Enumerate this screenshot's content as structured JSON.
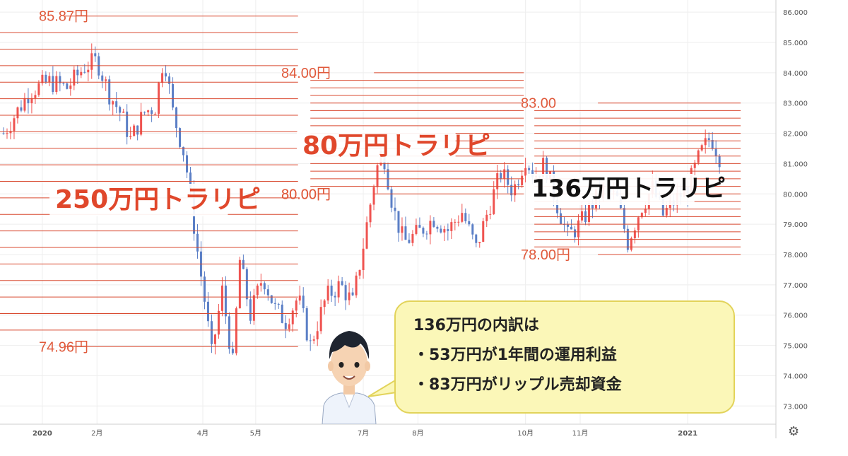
{
  "chart_data": {
    "type": "candlestick",
    "y_axis": {
      "ylim": [
        72.4,
        86.4
      ],
      "tick_labels": [
        "86.000",
        "85.000",
        "84.000",
        "83.000",
        "82.000",
        "81.000",
        "80.000",
        "79.000",
        "78.000",
        "77.000",
        "76.000",
        "75.000",
        "74.000",
        "73.000"
      ],
      "tick_values": [
        86,
        85,
        84,
        83,
        82,
        81,
        80,
        79,
        78,
        77,
        76,
        75,
        74,
        73
      ],
      "grid": true
    },
    "x_axis": {
      "tick_labels": [
        "2020",
        "2月",
        "4月",
        "5月",
        "7月",
        "8月",
        "10月",
        "11月",
        "2021"
      ],
      "tick_dates": [
        "2020-01-01",
        "2020-02-01",
        "2020-04-01",
        "2020-05-01",
        "2020-07-01",
        "2020-08-01",
        "2020-10-01",
        "2020-11-01",
        "2021-01-01"
      ],
      "range": [
        "2019-12-08",
        "2021-02-20"
      ]
    },
    "colors": {
      "up": "#ef5350",
      "down": "#5b7fc6",
      "trap_line": "#d94a30",
      "grid": "#eeeeee"
    },
    "price_path": [
      [
        "2019-12-10",
        82.0
      ],
      [
        "2019-12-25",
        83.4
      ],
      [
        "2020-01-05",
        83.7
      ],
      [
        "2020-01-15",
        83.5
      ],
      [
        "2020-01-25",
        84.2
      ],
      [
        "2020-02-01",
        84.4
      ],
      [
        "2020-02-08",
        83.3
      ],
      [
        "2020-02-15",
        82.6
      ],
      [
        "2020-02-20",
        81.8
      ],
      [
        "2020-02-28",
        82.7
      ],
      [
        "2020-03-05",
        82.9
      ],
      [
        "2020-03-10",
        84.6
      ],
      [
        "2020-03-15",
        82.7
      ],
      [
        "2020-03-22",
        81.2
      ],
      [
        "2020-03-28",
        78.5
      ],
      [
        "2020-04-02",
        76.5
      ],
      [
        "2020-04-06",
        74.7
      ],
      [
        "2020-04-12",
        76.8
      ],
      [
        "2020-04-18",
        74.4
      ],
      [
        "2020-04-22",
        77.8
      ],
      [
        "2020-04-28",
        76.0
      ],
      [
        "2020-05-05",
        77.3
      ],
      [
        "2020-05-12",
        76.2
      ],
      [
        "2020-05-18",
        75.8
      ],
      [
        "2020-05-25",
        76.6
      ],
      [
        "2020-06-01",
        75.0
      ],
      [
        "2020-06-10",
        76.6
      ],
      [
        "2020-06-18",
        77.0
      ],
      [
        "2020-06-25",
        76.4
      ],
      [
        "2020-07-01",
        78.3
      ],
      [
        "2020-07-08",
        80.7
      ],
      [
        "2020-07-12",
        81.5
      ],
      [
        "2020-07-18",
        79.5
      ],
      [
        "2020-07-24",
        78.4
      ],
      [
        "2020-08-01",
        78.7
      ],
      [
        "2020-08-10",
        79.2
      ],
      [
        "2020-08-18",
        78.8
      ],
      [
        "2020-08-26",
        79.4
      ],
      [
        "2020-09-03",
        78.2
      ],
      [
        "2020-09-10",
        79.5
      ],
      [
        "2020-09-17",
        80.7
      ],
      [
        "2020-09-24",
        80.1
      ],
      [
        "2020-10-01",
        81.2
      ],
      [
        "2020-10-06",
        80.6
      ],
      [
        "2020-10-12",
        81.0
      ],
      [
        "2020-10-18",
        79.8
      ],
      [
        "2020-10-25",
        78.6
      ],
      [
        "2020-11-01",
        79.0
      ],
      [
        "2020-11-08",
        79.7
      ],
      [
        "2020-11-15",
        80.2
      ],
      [
        "2020-11-22",
        79.8
      ],
      [
        "2020-11-28",
        78.4
      ],
      [
        "2020-12-05",
        79.5
      ],
      [
        "2020-12-12",
        80.2
      ],
      [
        "2020-12-18",
        79.3
      ],
      [
        "2020-12-25",
        79.8
      ],
      [
        "2021-01-01",
        80.2
      ],
      [
        "2021-01-08",
        81.3
      ],
      [
        "2021-01-14",
        81.9
      ],
      [
        "2021-01-20",
        81.1
      ]
    ],
    "trap_zones": [
      {
        "label": "250万円トラリピ",
        "top_label": "85.87円",
        "bottom_label": "74.96円",
        "top": 85.87,
        "bottom": 74.96,
        "from": "2019-12-08",
        "to": "2020-05-25",
        "line_count": 21
      },
      {
        "label": "80万円トラリピ",
        "top_label": "84.00円",
        "bottom_label": "80.00円",
        "top": 84.0,
        "bottom": 80.0,
        "from": "2020-06-01",
        "to": "2020-09-30",
        "line_count": 17
      },
      {
        "label": "136万円トラリピ",
        "top_label": "83.00",
        "bottom_label": "78.00円",
        "top": 83.0,
        "bottom": 78.0,
        "from": "2020-10-06",
        "to": "2021-01-31",
        "line_count": 21
      }
    ]
  },
  "callout": {
    "lines": [
      "136万円の内訳は",
      "・53万円が1年間の運用利益",
      "・83万円がリップル売却資金"
    ]
  },
  "icons": {
    "settings": "gear-icon",
    "avatar": "businessman-avatar"
  }
}
